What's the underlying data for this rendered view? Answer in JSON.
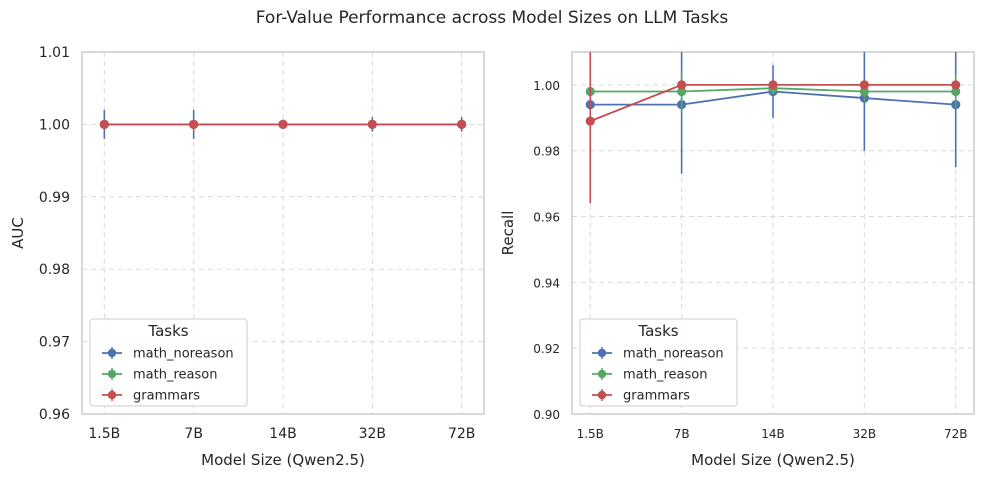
{
  "figure_title": "For-Value Performance across Model Sizes on LLM Tasks",
  "colors": {
    "math_noreason": "#4c72b0",
    "math_reason": "#55a868",
    "grammars": "#c44e52",
    "grid": "#d9d9d9",
    "spine": "#cccccc"
  },
  "chart_data": [
    {
      "type": "line",
      "title": "",
      "xlabel": "Model Size (Qwen2.5)",
      "ylabel": "AUC",
      "categories": [
        "1.5B",
        "7B",
        "14B",
        "32B",
        "72B"
      ],
      "ylim": [
        0.96,
        1.01
      ],
      "yticks": [
        0.96,
        0.97,
        0.98,
        0.99,
        1.0,
        1.01
      ],
      "ytick_labels": [
        "0.96",
        "0.97",
        "0.98",
        "0.99",
        "1.00",
        "1.01"
      ],
      "grid": true,
      "legend": {
        "title": "Tasks",
        "placement": "lower-left"
      },
      "series": [
        {
          "name": "math_noreason",
          "values": [
            1.0,
            1.0,
            1.0,
            1.0,
            1.0
          ],
          "err": [
            0.002,
            0.002,
            0.0005,
            0.001,
            0.001
          ]
        },
        {
          "name": "math_reason",
          "values": [
            1.0,
            1.0,
            1.0,
            1.0,
            1.0
          ],
          "err": [
            0.0005,
            0.0005,
            0.0005,
            0.0005,
            0.0005
          ]
        },
        {
          "name": "grammars",
          "values": [
            1.0,
            1.0,
            1.0,
            1.0,
            1.0
          ],
          "err": [
            0,
            0,
            0,
            0,
            0
          ]
        }
      ]
    },
    {
      "type": "line",
      "title": "",
      "xlabel": "Model Size (Qwen2.5)",
      "ylabel": "Recall",
      "categories": [
        "1.5B",
        "7B",
        "14B",
        "32B",
        "72B"
      ],
      "ylim": [
        0.9,
        1.01
      ],
      "yticks": [
        0.9,
        0.92,
        0.94,
        0.96,
        0.98,
        1.0
      ],
      "ytick_labels": [
        "0.90",
        "0.92",
        "0.94",
        "0.96",
        "0.98",
        "1.00"
      ],
      "grid": true,
      "legend": {
        "title": "Tasks",
        "placement": "lower-left"
      },
      "series": [
        {
          "name": "math_noreason",
          "values": [
            0.994,
            0.994,
            0.998,
            0.996,
            0.994
          ],
          "err": [
            0.0,
            0.021,
            0.008,
            0.016,
            0.019
          ]
        },
        {
          "name": "math_reason",
          "values": [
            0.998,
            0.998,
            0.999,
            0.998,
            0.998
          ],
          "err": [
            0.0,
            0.006,
            0.002,
            0.003,
            0.005
          ]
        },
        {
          "name": "grammars",
          "values": [
            0.989,
            1.0,
            1.0,
            1.0,
            1.0
          ],
          "err": [
            0.025,
            0.0,
            0.0,
            0.0,
            0.0
          ]
        }
      ]
    }
  ]
}
